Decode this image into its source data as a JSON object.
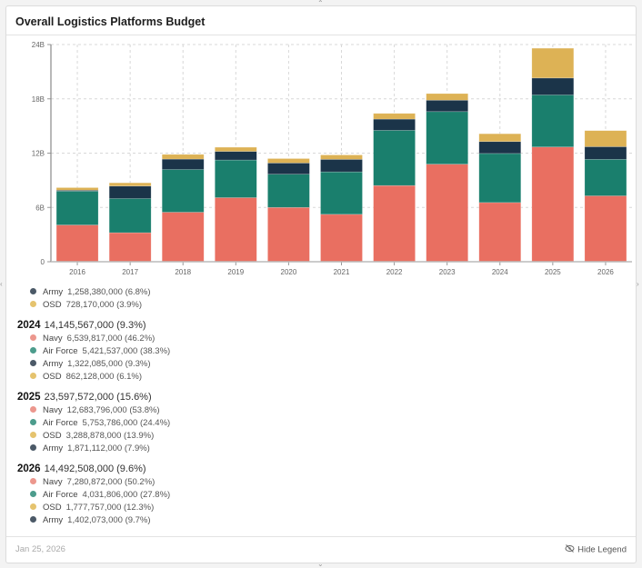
{
  "header": {
    "title": "Overall Logistics Platforms Budget"
  },
  "colors": {
    "Navy": "#E96F61",
    "Air Force": "#1A7F6D",
    "Army": "#1B3449",
    "OSD": "#DDB255"
  },
  "dot_colors": {
    "Navy": "#EC978D",
    "Air Force": "#4C9C8C",
    "Army": "#4B5967",
    "OSD": "#E5C36E"
  },
  "chart_data": {
    "type": "bar",
    "stacked": true,
    "title": "Overall Logistics Platforms Budget",
    "xlabel": "",
    "ylabel": "",
    "categories": [
      "2016",
      "2017",
      "2018",
      "2019",
      "2020",
      "2021",
      "2022",
      "2023",
      "2024",
      "2025",
      "2026"
    ],
    "ylim": [
      0,
      24
    ],
    "yticks": [
      0,
      6,
      12,
      18,
      24
    ],
    "ytick_labels": [
      "0",
      "6B",
      "12B",
      "18B",
      "24B"
    ],
    "grid": true,
    "series": [
      {
        "name": "Navy",
        "values": [
          4.06,
          3.21,
          5.47,
          7.08,
          6.0,
          5.24,
          8.42,
          10.78,
          6.54,
          12.68,
          7.28
        ]
      },
      {
        "name": "Air Force",
        "values": [
          3.74,
          3.77,
          4.72,
          4.16,
          3.67,
          4.69,
          6.1,
          5.81,
          5.42,
          5.75,
          4.03
        ]
      },
      {
        "name": "Army",
        "values": [
          0.1,
          1.38,
          1.15,
          0.95,
          1.24,
          1.38,
          1.24,
          1.26,
          1.32,
          1.87,
          1.4
        ]
      },
      {
        "name": "OSD",
        "values": [
          0.29,
          0.36,
          0.52,
          0.46,
          0.49,
          0.49,
          0.63,
          0.73,
          0.86,
          3.29,
          1.78
        ]
      }
    ]
  },
  "legend": {
    "groups": [
      {
        "year": "",
        "total": "",
        "items": [
          {
            "name": "Army",
            "value": "1,258,380,000 (6.8%)"
          },
          {
            "name": "OSD",
            "value": "728,170,000 (3.9%)"
          }
        ]
      },
      {
        "year": "2024",
        "total": "14,145,567,000 (9.3%)",
        "items": [
          {
            "name": "Navy",
            "value": "6,539,817,000 (46.2%)"
          },
          {
            "name": "Air Force",
            "value": "5,421,537,000 (38.3%)"
          },
          {
            "name": "Army",
            "value": "1,322,085,000 (9.3%)"
          },
          {
            "name": "OSD",
            "value": "862,128,000 (6.1%)"
          }
        ]
      },
      {
        "year": "2025",
        "total": "23,597,572,000 (15.6%)",
        "items": [
          {
            "name": "Navy",
            "value": "12,683,796,000 (53.8%)"
          },
          {
            "name": "Air Force",
            "value": "5,753,786,000 (24.4%)"
          },
          {
            "name": "OSD",
            "value": "3,288,878,000 (13.9%)"
          },
          {
            "name": "Army",
            "value": "1,871,112,000 (7.9%)"
          }
        ]
      },
      {
        "year": "2026",
        "total": "14,492,508,000 (9.6%)",
        "items": [
          {
            "name": "Navy",
            "value": "7,280,872,000 (50.2%)"
          },
          {
            "name": "Air Force",
            "value": "4,031,806,000 (27.8%)"
          },
          {
            "name": "OSD",
            "value": "1,777,757,000 (12.3%)"
          },
          {
            "name": "Army",
            "value": "1,402,073,000 (9.7%)"
          }
        ]
      }
    ]
  },
  "footer": {
    "date": "Jan 25, 2026",
    "hide_legend_label": "Hide Legend",
    "hide_legend_icon": "eye-slash-icon"
  }
}
